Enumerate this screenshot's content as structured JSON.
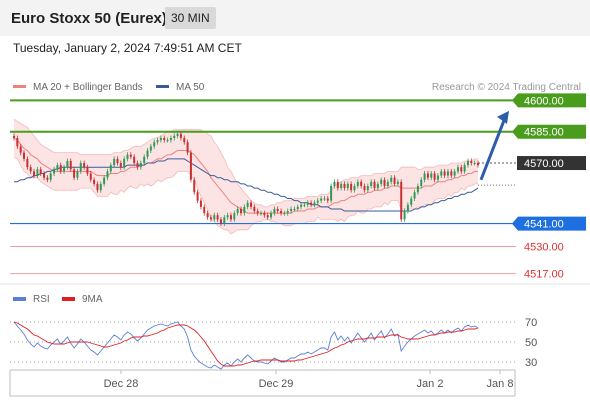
{
  "header": {
    "title": "Euro Stoxx 50 (Eurex)",
    "timeframe": "30 MIN",
    "timestamp": "Tuesday, January 2, 2024 7:49:51 AM CET"
  },
  "chart_data": [
    {
      "type": "candlestick",
      "title": "",
      "legend": [
        {
          "name": "MA 20 + Bollinger Bands",
          "color": "#f08080"
        },
        {
          "name": "MA 50",
          "color": "#3a5a9a"
        }
      ],
      "source": "Research © 2024 Trading Central",
      "ylim": [
        4513,
        4605
      ],
      "x_ticks": [
        "Dec 28",
        "Dec 29",
        "Jan 2",
        "Jan 8"
      ],
      "levels": [
        {
          "label": "4600.00",
          "value": 4600,
          "kind": "resistance",
          "color": "#4a9c1c"
        },
        {
          "label": "4585.00",
          "value": 4585,
          "kind": "resistance",
          "color": "#4a9c1c"
        },
        {
          "label": "4570.00",
          "value": 4570,
          "kind": "last",
          "color": "#333333"
        },
        {
          "label": "4541.00",
          "value": 4541,
          "kind": "pivot",
          "color": "#1e6fe0"
        },
        {
          "label": "4530.00",
          "value": 4530,
          "kind": "support",
          "color": "#e05050"
        },
        {
          "label": "4517.00",
          "value": 4517,
          "kind": "support",
          "color": "#e05050"
        }
      ],
      "closes": [
        4582,
        4578,
        4575,
        4572,
        4568,
        4566,
        4564,
        4567,
        4565,
        4563,
        4562,
        4565,
        4567,
        4569,
        4566,
        4568,
        4571,
        4567,
        4563,
        4566,
        4570,
        4568,
        4565,
        4562,
        4560,
        4557,
        4560,
        4563,
        4566,
        4569,
        4572,
        4570,
        4568,
        4572,
        4574,
        4573,
        4570,
        4568,
        4570,
        4573,
        4576,
        4578,
        4580,
        4581,
        4582,
        4581,
        4581,
        4582,
        4583,
        4584,
        4582,
        4580,
        4575,
        4562,
        4556,
        4552,
        4549,
        4546,
        4544,
        4543,
        4545,
        4543,
        4541,
        4544,
        4545,
        4543,
        4546,
        4548,
        4546,
        4549,
        4551,
        4549,
        4547,
        4546,
        4546,
        4545,
        4544,
        4546,
        4548,
        4547,
        4546,
        4546,
        4547,
        4548,
        4548,
        4549,
        4550,
        4550,
        4551,
        4550,
        4551,
        4552,
        4553,
        4553,
        4552,
        4559,
        4561,
        4558,
        4560,
        4558,
        4560,
        4557,
        4559,
        4561,
        4559,
        4557,
        4559,
        4561,
        4558,
        4560,
        4562,
        4559,
        4561,
        4563,
        4560,
        4561,
        4543,
        4547,
        4550,
        4553,
        4556,
        4559,
        4562,
        4565,
        4563,
        4565,
        4562,
        4564,
        4566,
        4564,
        4566,
        4564,
        4566,
        4568,
        4566,
        4569,
        4571,
        4570,
        4570,
        4569
      ],
      "ma20": [
        4582,
        4581,
        4579,
        4577,
        4576,
        4574,
        4573,
        4572,
        4570,
        4569,
        4568,
        4567,
        4566,
        4566,
        4566,
        4566,
        4566,
        4566,
        4566,
        4566,
        4566,
        4566,
        4566,
        4566,
        4565,
        4564,
        4564,
        4564,
        4564,
        4565,
        4565,
        4565,
        4566,
        4566,
        4567,
        4568,
        4568,
        4568,
        4569,
        4569,
        4570,
        4570,
        4571,
        4572,
        4572,
        4573,
        4574,
        4574,
        4575,
        4576,
        4576,
        4576,
        4576,
        4575,
        4574,
        4572,
        4570,
        4568,
        4566,
        4563,
        4561,
        4559,
        4557,
        4555,
        4553,
        4551,
        4550,
        4549,
        4548,
        4547,
        4546,
        4546,
        4546,
        4546,
        4546,
        4546,
        4546,
        4546,
        4546,
        4546,
        4546,
        4546,
        4546,
        4546,
        4547,
        4547,
        4547,
        4547,
        4548,
        4548,
        4548,
        4549,
        4549,
        4549,
        4549,
        4550,
        4551,
        4551,
        4552,
        4552,
        4553,
        4554,
        4554,
        4555,
        4555,
        4555,
        4556,
        4556,
        4557,
        4557,
        4557,
        4558,
        4558,
        4559,
        4559,
        4559,
        4558,
        4558,
        4558,
        4558,
        4558,
        4558,
        4558,
        4559,
        4559,
        4559,
        4560,
        4561,
        4561,
        4561,
        4562,
        4562,
        4563,
        4563,
        4564,
        4564,
        4565,
        4565,
        4566,
        4566
      ],
      "bb_upper": [
        4591,
        4590,
        4589,
        4588,
        4587,
        4585,
        4583,
        4581,
        4579,
        4578,
        4577,
        4576,
        4575,
        4575,
        4575,
        4575,
        4575,
        4575,
        4575,
        4575,
        4574,
        4574,
        4574,
        4574,
        4574,
        4574,
        4574,
        4574,
        4574,
        4574,
        4575,
        4575,
        4575,
        4576,
        4576,
        4577,
        4578,
        4578,
        4578,
        4579,
        4580,
        4581,
        4582,
        4582,
        4583,
        4584,
        4585,
        4585,
        4586,
        4586,
        4586,
        4586,
        4586,
        4586,
        4586,
        4586,
        4586,
        4585,
        4584,
        4583,
        4580,
        4578,
        4575,
        4572,
        4568,
        4566,
        4563,
        4560,
        4558,
        4556,
        4554,
        4552,
        4551,
        4550,
        4550,
        4549,
        4549,
        4550,
        4550,
        4551,
        4551,
        4552,
        4552,
        4552,
        4553,
        4553,
        4553,
        4553,
        4554,
        4554,
        4554,
        4554,
        4555,
        4555,
        4555,
        4557,
        4559,
        4560,
        4561,
        4562,
        4562,
        4563,
        4563,
        4563,
        4564,
        4564,
        4564,
        4564,
        4565,
        4565,
        4565,
        4565,
        4566,
        4566,
        4566,
        4566,
        4568,
        4568,
        4568,
        4568,
        4568,
        4567,
        4567,
        4568,
        4568,
        4568,
        4568,
        4569,
        4569,
        4569,
        4569,
        4570,
        4570,
        4570,
        4570,
        4571,
        4571,
        4571,
        4572,
        4572
      ],
      "bb_lower": [
        4573,
        4572,
        4569,
        4566,
        4565,
        4563,
        4563,
        4563,
        4561,
        4560,
        4559,
        4558,
        4557,
        4557,
        4557,
        4557,
        4557,
        4557,
        4557,
        4557,
        4558,
        4558,
        4558,
        4558,
        4556,
        4554,
        4554,
        4554,
        4554,
        4556,
        4555,
        4555,
        4557,
        4556,
        4558,
        4559,
        4558,
        4558,
        4560,
        4559,
        4560,
        4559,
        4560,
        4562,
        4561,
        4562,
        4563,
        4563,
        4564,
        4566,
        4566,
        4566,
        4566,
        4564,
        4562,
        4558,
        4554,
        4551,
        4548,
        4543,
        4542,
        4540,
        4539,
        4538,
        4538,
        4536,
        4537,
        4538,
        4538,
        4538,
        4538,
        4540,
        4541,
        4542,
        4542,
        4543,
        4543,
        4542,
        4542,
        4541,
        4541,
        4540,
        4540,
        4540,
        4541,
        4541,
        4541,
        4541,
        4542,
        4542,
        4542,
        4544,
        4543,
        4543,
        4543,
        4543,
        4543,
        4542,
        4543,
        4542,
        4544,
        4545,
        4545,
        4547,
        4546,
        4546,
        4548,
        4548,
        4549,
        4549,
        4549,
        4551,
        4550,
        4552,
        4552,
        4552,
        4548,
        4548,
        4548,
        4548,
        4548,
        4549,
        4549,
        4550,
        4550,
        4550,
        4552,
        4553,
        4553,
        4553,
        4555,
        4554,
        4556,
        4556,
        4558,
        4557,
        4559,
        4559,
        4560,
        4560
      ],
      "ma50": [
        4561,
        4561,
        4562,
        4562,
        4563,
        4563,
        4564,
        4564,
        4565,
        4565,
        4566,
        4566,
        4567,
        4567,
        4568,
        4568,
        4568,
        4568,
        4568,
        4568,
        4568,
        4568,
        4568,
        4568,
        4568,
        4568,
        4568,
        4568,
        4568,
        4568,
        4568,
        4568,
        4568,
        4568,
        4569,
        4569,
        4569,
        4569,
        4569,
        4569,
        4570,
        4570,
        4570,
        4571,
        4571,
        4571,
        4572,
        4572,
        4572,
        4572,
        4572,
        4572,
        4571,
        4570,
        4569,
        4568,
        4567,
        4566,
        4565,
        4564,
        4564,
        4563,
        4563,
        4562,
        4562,
        4561,
        4561,
        4561,
        4560,
        4560,
        4559,
        4559,
        4558,
        4558,
        4557,
        4557,
        4556,
        4556,
        4555,
        4555,
        4554,
        4554,
        4553,
        4553,
        4552,
        4552,
        4551,
        4551,
        4551,
        4550,
        4550,
        4550,
        4549,
        4549,
        4549,
        4548,
        4548,
        4548,
        4548,
        4547,
        4547,
        4547,
        4547,
        4547,
        4547,
        4547,
        4547,
        4547,
        4547,
        4547,
        4547,
        4547,
        4547,
        4547,
        4547,
        4547,
        4547,
        4547,
        4547,
        4547,
        4548,
        4548,
        4549,
        4549,
        4550,
        4550,
        4551,
        4551,
        4552,
        4552,
        4553,
        4553,
        4554,
        4554,
        4555,
        4555,
        4556,
        4556,
        4557,
        4558
      ],
      "projection": {
        "from": 4562,
        "to": 4595
      }
    },
    {
      "type": "line",
      "legend": [
        {
          "name": "RSI",
          "color": "#5b7fd6"
        },
        {
          "name": "9MA",
          "color": "#e02020"
        }
      ],
      "ylim": [
        20,
        80
      ],
      "y_ticks": [
        70,
        50,
        30
      ],
      "rsi": [
        70,
        66,
        62,
        58,
        52,
        48,
        45,
        49,
        46,
        44,
        43,
        47,
        50,
        53,
        48,
        51,
        55,
        49,
        44,
        48,
        53,
        50,
        46,
        42,
        40,
        37,
        41,
        45,
        49,
        53,
        57,
        55,
        52,
        57,
        60,
        58,
        54,
        51,
        54,
        58,
        62,
        64,
        66,
        67,
        68,
        67,
        66,
        68,
        69,
        70,
        66,
        63,
        55,
        42,
        36,
        32,
        29,
        27,
        25,
        24,
        27,
        25,
        23,
        27,
        29,
        26,
        30,
        33,
        30,
        34,
        37,
        34,
        31,
        30,
        30,
        29,
        28,
        31,
        34,
        32,
        30,
        30,
        32,
        34,
        34,
        36,
        38,
        38,
        40,
        38,
        40,
        42,
        44,
        44,
        42,
        55,
        60,
        52,
        56,
        51,
        55,
        49,
        54,
        59,
        54,
        50,
        54,
        59,
        52,
        57,
        61,
        54,
        58,
        63,
        56,
        58,
        41,
        46,
        50,
        53,
        56,
        58,
        60,
        62,
        59,
        61,
        57,
        59,
        62,
        59,
        62,
        59,
        62,
        64,
        61,
        65,
        67,
        65,
        66,
        64
      ],
      "ma9": [
        70,
        69,
        67,
        65,
        63,
        60,
        57,
        56,
        54,
        52,
        50,
        49,
        48,
        48,
        48,
        48,
        49,
        50,
        50,
        50,
        50,
        50,
        50,
        49,
        48,
        47,
        46,
        45,
        45,
        46,
        47,
        48,
        49,
        51,
        52,
        54,
        55,
        55,
        55,
        56,
        56,
        57,
        58,
        59,
        61,
        62,
        64,
        65,
        66,
        67,
        67,
        67,
        66,
        64,
        62,
        59,
        55,
        51,
        46,
        41,
        36,
        31,
        28,
        26,
        26,
        26,
        26,
        27,
        27,
        28,
        29,
        30,
        31,
        31,
        32,
        32,
        32,
        32,
        32,
        32,
        31,
        31,
        31,
        31,
        31,
        32,
        32,
        33,
        34,
        35,
        36,
        37,
        38,
        39,
        40,
        42,
        44,
        45,
        47,
        48,
        50,
        51,
        52,
        53,
        53,
        53,
        54,
        54,
        54,
        55,
        55,
        55,
        56,
        57,
        57,
        57,
        55,
        54,
        53,
        53,
        53,
        53,
        54,
        55,
        56,
        57,
        57,
        58,
        59,
        59,
        60,
        60,
        60,
        61,
        61,
        62,
        63,
        63,
        63,
        64
      ]
    }
  ]
}
